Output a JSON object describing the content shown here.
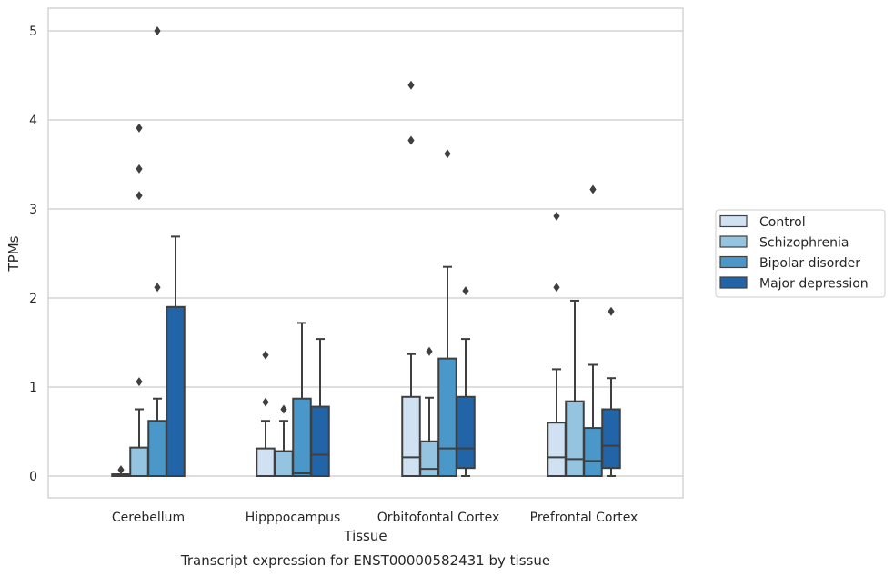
{
  "caption": "Transcript expression for ENST00000582431 by tissue",
  "chart_data": {
    "type": "box",
    "xlabel": "Tissue",
    "ylabel": "TPMs",
    "ylim": [
      -0.25,
      5.25
    ],
    "yticks": [
      0,
      1,
      2,
      3,
      4,
      5
    ],
    "grid": "horizontal",
    "legend_position": "right",
    "categories": [
      "Cerebellum",
      "Hipppocampus",
      "Orbitofontal Cortex",
      "Prefrontal Cortex"
    ],
    "series": [
      {
        "name": "Control",
        "color": "#d0e1f2",
        "boxes": [
          {
            "q1": 0.0,
            "median": 0.0,
            "q3": 0.02,
            "whisker_low": 0.0,
            "whisker_high": 0.02,
            "outliers": [
              0.07
            ]
          },
          {
            "q1": 0.0,
            "median": 0.0,
            "q3": 0.31,
            "whisker_low": 0.0,
            "whisker_high": 0.62,
            "outliers": [
              0.83,
              1.36
            ]
          },
          {
            "q1": 0.0,
            "median": 0.21,
            "q3": 0.89,
            "whisker_low": 0.0,
            "whisker_high": 1.37,
            "outliers": [
              3.77,
              4.39
            ]
          },
          {
            "q1": 0.0,
            "median": 0.21,
            "q3": 0.6,
            "whisker_low": 0.0,
            "whisker_high": 1.2,
            "outliers": [
              2.12,
              2.92
            ]
          }
        ]
      },
      {
        "name": "Schizophrenia",
        "color": "#94c4df",
        "boxes": [
          {
            "q1": 0.0,
            "median": 0.0,
            "q3": 0.32,
            "whisker_low": 0.0,
            "whisker_high": 0.75,
            "outliers": [
              1.06,
              3.15,
              3.45,
              3.91
            ]
          },
          {
            "q1": 0.0,
            "median": 0.0,
            "q3": 0.28,
            "whisker_low": 0.0,
            "whisker_high": 0.62,
            "outliers": [
              0.75
            ]
          },
          {
            "q1": 0.0,
            "median": 0.08,
            "q3": 0.39,
            "whisker_low": 0.0,
            "whisker_high": 0.88,
            "outliers": [
              1.4
            ]
          },
          {
            "q1": 0.0,
            "median": 0.19,
            "q3": 0.84,
            "whisker_low": 0.0,
            "whisker_high": 1.97,
            "outliers": []
          }
        ]
      },
      {
        "name": "Bipolar disorder",
        "color": "#4a98c9",
        "boxes": [
          {
            "q1": 0.0,
            "median": 0.0,
            "q3": 0.62,
            "whisker_low": 0.0,
            "whisker_high": 0.87,
            "outliers": [
              2.12,
              5.0
            ]
          },
          {
            "q1": 0.0,
            "median": 0.03,
            "q3": 0.87,
            "whisker_low": 0.0,
            "whisker_high": 1.72,
            "outliers": []
          },
          {
            "q1": 0.0,
            "median": 0.31,
            "q3": 1.32,
            "whisker_low": 0.0,
            "whisker_high": 2.35,
            "outliers": [
              3.62
            ]
          },
          {
            "q1": 0.0,
            "median": 0.17,
            "q3": 0.54,
            "whisker_low": 0.0,
            "whisker_high": 1.25,
            "outliers": [
              3.22
            ]
          }
        ]
      },
      {
        "name": "Major depression",
        "color": "#2264a8",
        "boxes": [
          {
            "q1": 0.0,
            "median": 0.0,
            "q3": 1.9,
            "whisker_low": 0.0,
            "whisker_high": 2.69,
            "outliers": []
          },
          {
            "q1": 0.0,
            "median": 0.24,
            "q3": 0.78,
            "whisker_low": 0.0,
            "whisker_high": 1.54,
            "outliers": []
          },
          {
            "q1": 0.09,
            "median": 0.31,
            "q3": 0.89,
            "whisker_low": 0.0,
            "whisker_high": 1.54,
            "outliers": [
              2.08
            ]
          },
          {
            "q1": 0.09,
            "median": 0.34,
            "q3": 0.75,
            "whisker_low": 0.0,
            "whisker_high": 1.1,
            "outliers": [
              1.85
            ]
          }
        ]
      }
    ]
  }
}
